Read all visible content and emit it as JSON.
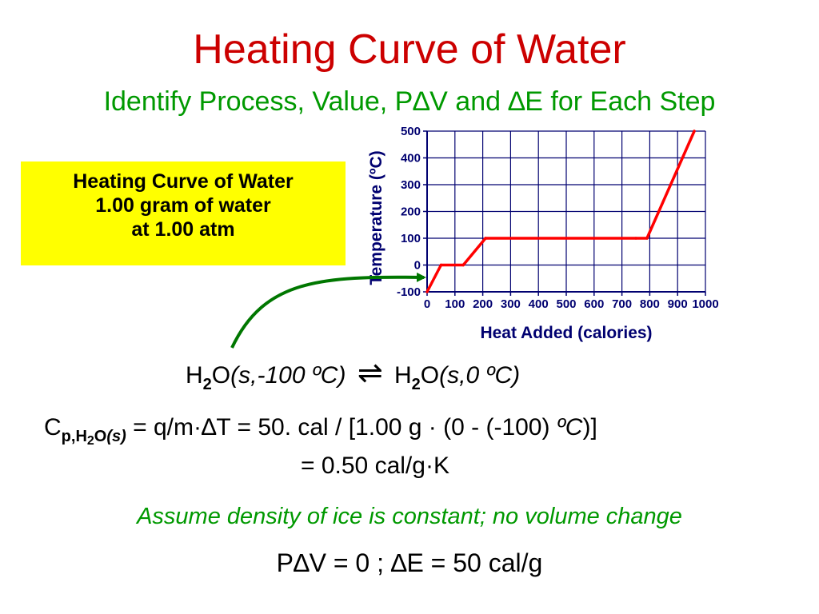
{
  "title": "Heating Curve of Water",
  "subtitle": "Identify Process, Value, P∆V and ∆E for Each Step",
  "infobox": {
    "line1": "Heating Curve of Water",
    "line2": "1.00 gram of water",
    "line3": "at 1.00 atm"
  },
  "chart_data": {
    "type": "line",
    "xlabel": "Heat Added (calories)",
    "ylabel": "Temperature (ºC)",
    "xlim": [
      0,
      1000
    ],
    "ylim": [
      -100,
      500
    ],
    "xticks": [
      "0",
      "100",
      "200",
      "300",
      "400",
      "500",
      "600",
      "700",
      "800",
      "900",
      "1000"
    ],
    "yticks": [
      "-100",
      "0",
      "100",
      "200",
      "300",
      "400",
      "500"
    ],
    "grid": true,
    "line_color": "#ff0000",
    "x": [
      0,
      50,
      130,
      210,
      750,
      790,
      960
    ],
    "y": [
      -100,
      0,
      0,
      100,
      100,
      100,
      500
    ]
  },
  "reaction": {
    "left_h": "H",
    "left_2": "2",
    "left_o": "O",
    "left_state": "(s,-100 ºC)",
    "arrow": "⇌",
    "right_h": "H",
    "right_2": "2",
    "right_o": "O",
    "right_state": "(s,0 ºC)"
  },
  "cp": {
    "c": "C",
    "sub_p": "p,H",
    "sub_2": "2",
    "sub_o": "O",
    "sub_s": "(s)",
    "formula": " = q/m·∆T",
    "calc_a": " = 50. cal / [1.00 g · (0 - (-100) ",
    "calc_unit": "ºC",
    "calc_b": ")]",
    "result": "= 0.50 cal/g·K"
  },
  "assumption": "Assume density of ice is constant; no volume change",
  "final": "P∆V = 0 ; ∆E = 50 cal/g",
  "colors": {
    "title": "#cc0000",
    "subtitle": "#009900",
    "infobox_bg": "#ffff00",
    "arrow": "#007700"
  }
}
